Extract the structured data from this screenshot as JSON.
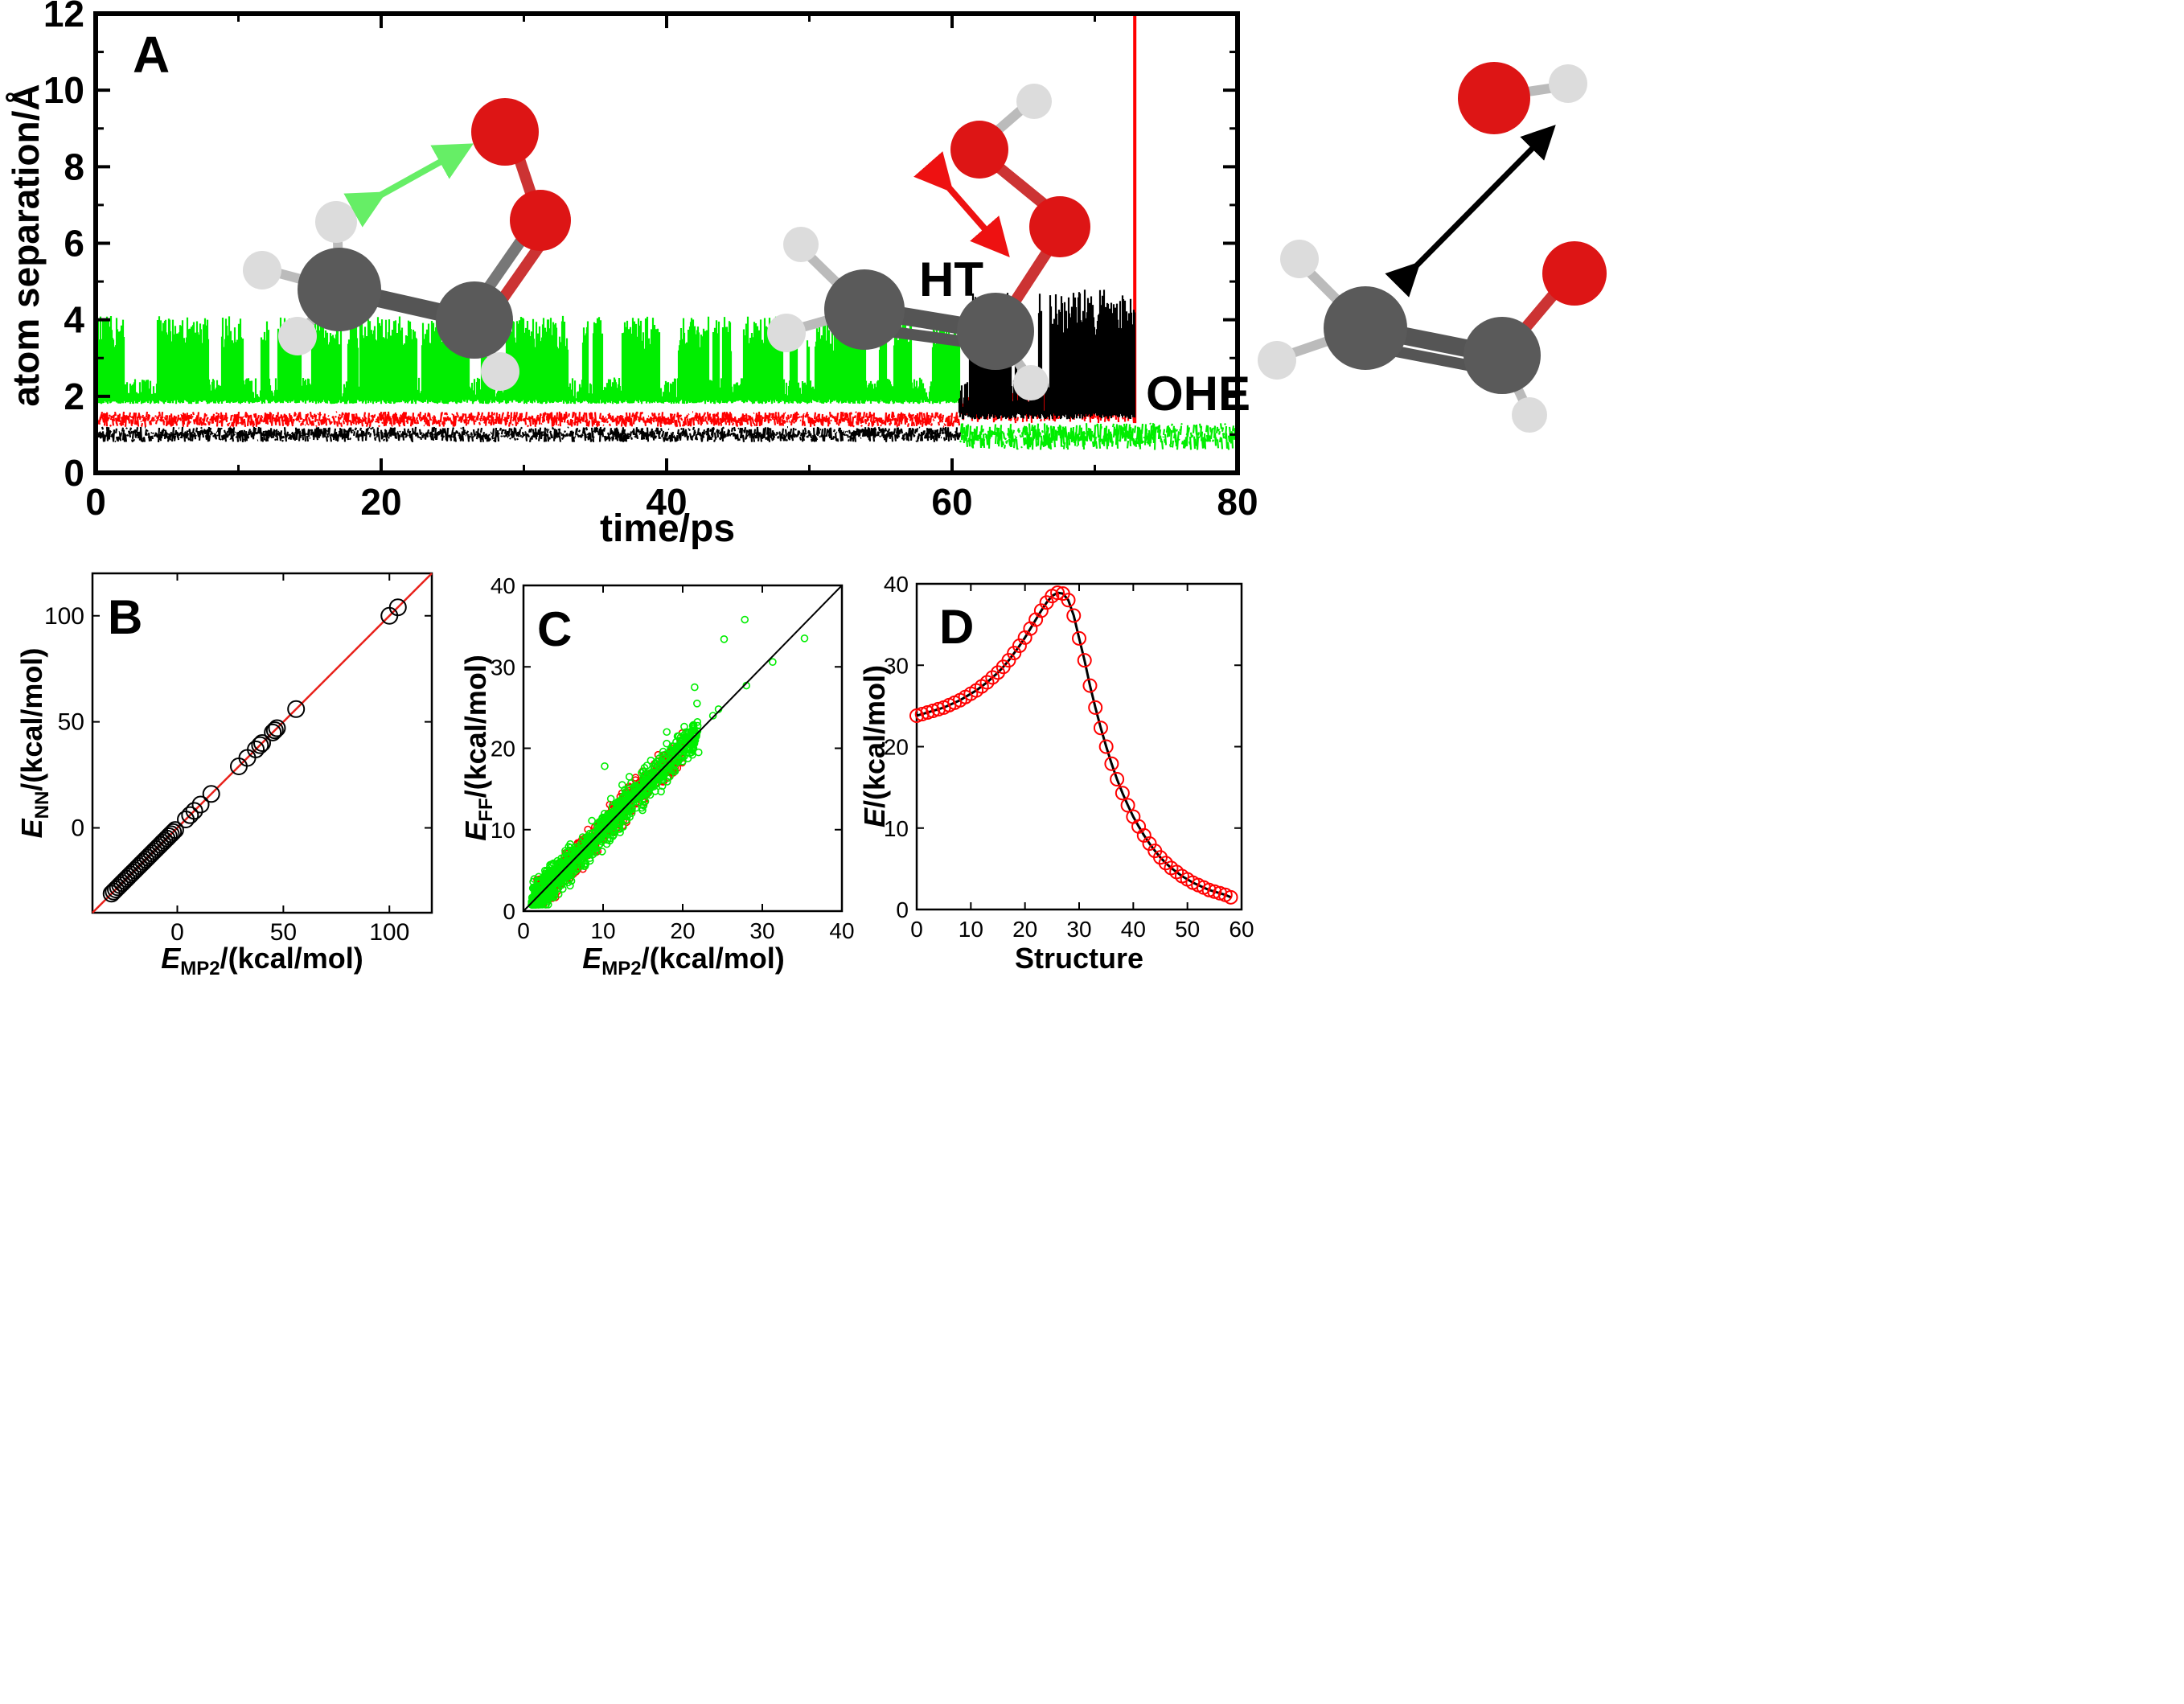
{
  "colors": {
    "green": "#00ee00",
    "red": "#ff0000",
    "black": "#000000",
    "fit_line": "#000000",
    "diag_b": "#e8201a"
  },
  "chart_data": [
    {
      "panel": "A",
      "type": "line",
      "xlabel": "time/ps",
      "ylabel": "atom separation/Å",
      "xlim": [
        0,
        80
      ],
      "ylim": [
        0,
        12
      ],
      "xticks": [
        "0",
        "20",
        "40",
        "60",
        "80"
      ],
      "yticks": [
        "0",
        "2",
        "4",
        "6",
        "8",
        "10",
        "12"
      ],
      "annotations": [
        "HT",
        "OHE"
      ],
      "series": [
        {
          "color": "green",
          "segments": [
            {
              "x": [
                0,
                60.5
              ],
              "y_low": 1.8,
              "y_high": 4.1,
              "pattern": "switching"
            },
            {
              "x": [
                60.5,
                80
              ],
              "y_low": 0.6,
              "y_high": 1.3,
              "pattern": "noise"
            }
          ]
        },
        {
          "color": "red",
          "segments": [
            {
              "x": [
                0,
                60.5
              ],
              "y_low": 1.2,
              "y_high": 1.6,
              "pattern": "noise"
            },
            {
              "x": [
                60.5,
                72.8
              ],
              "y_low": 1.3,
              "y_high": 2.1,
              "pattern": "noise"
            },
            {
              "x": [
                72.8,
                72.9
              ],
              "y_low": 1.3,
              "y_high": 12,
              "pattern": "jump"
            }
          ]
        },
        {
          "color": "black",
          "segments": [
            {
              "x": [
                0,
                60.5
              ],
              "y_low": 0.8,
              "y_high": 1.2,
              "pattern": "noise"
            },
            {
              "x": [
                60.5,
                72.8
              ],
              "y_low": 1.4,
              "y_high": 4.8,
              "pattern": "switching"
            }
          ]
        }
      ],
      "grid": false
    },
    {
      "panel": "B",
      "type": "scatter",
      "xlabel_main": "E",
      "xlabel_sub": "MP2",
      "xlabel_tail": "/(kcal/mol)",
      "ylabel_main": "E",
      "ylabel_sub": "NN",
      "ylabel_tail": "/(kcal/mol)",
      "xlim": [
        -40,
        120
      ],
      "ylim": [
        -40,
        120
      ],
      "xticks": [
        "0",
        "50",
        "100"
      ],
      "yticks": [
        "0",
        "50",
        "100"
      ],
      "points_x": [
        -31,
        -30,
        -29,
        -28,
        -27,
        -26,
        -25,
        -24,
        -23,
        -22,
        -21,
        -20,
        -19,
        -18,
        -17,
        -16,
        -15,
        -14,
        -13,
        -12,
        -11,
        -10,
        -9,
        -8,
        -7,
        -6,
        -5,
        -4,
        -3,
        -2,
        -1,
        4,
        6,
        8,
        11,
        16,
        29,
        33,
        37,
        39,
        40,
        45,
        46,
        47,
        56,
        100,
        104
      ],
      "points_y": [
        -31,
        -30,
        -29,
        -28,
        -27,
        -26,
        -25,
        -24,
        -23,
        -22,
        -21,
        -20,
        -19,
        -18,
        -17,
        -16,
        -15,
        -14,
        -13,
        -12,
        -11,
        -10,
        -9,
        -8,
        -7,
        -6,
        -5,
        -4,
        -3,
        -2,
        -1,
        4,
        6,
        8,
        11,
        16,
        29,
        33,
        37,
        39,
        40,
        45,
        46,
        47,
        56,
        100,
        104
      ],
      "reference_line": "y=x",
      "grid": false
    },
    {
      "panel": "C",
      "type": "scatter",
      "xlabel_main": "E",
      "xlabel_sub": "MP2",
      "xlabel_tail": "/(kcal/mol)",
      "ylabel_main": "E",
      "ylabel_sub": "FF",
      "ylabel_tail": "/(kcal/mol)",
      "xlim": [
        0,
        40
      ],
      "ylim": [
        0,
        40
      ],
      "xticks": [
        "0",
        "10",
        "20",
        "30",
        "40"
      ],
      "yticks": [
        "0",
        "10",
        "20",
        "30",
        "40"
      ],
      "series": [
        {
          "color": "red",
          "count": 500,
          "x_range": [
            1.5,
            20
          ],
          "spread": 1.3
        },
        {
          "color": "green",
          "count": 900,
          "x_range": [
            1,
            22
          ],
          "spread": 1.5,
          "outliers_x": [
            10.2,
            12.4,
            13.3,
            18,
            21.5,
            21.8,
            22,
            23.8,
            24.5,
            25.2,
            27.8,
            28,
            31.3,
            35.3,
            19.5,
            20.8,
            16,
            15.2
          ],
          "outliers_y": [
            17.8,
            15.5,
            16.5,
            22,
            27.5,
            25.5,
            19.5,
            24,
            24.8,
            33.4,
            35.8,
            27.7,
            30.6,
            33.5,
            21.5,
            20.5,
            18.5,
            17.6
          ]
        }
      ],
      "reference_line": "y=x",
      "grid": false
    },
    {
      "panel": "D",
      "type": "scatter",
      "xlabel": "Structure",
      "ylabel_main": "E",
      "ylabel_tail": "/(kcal/mol)",
      "xlim": [
        0,
        60
      ],
      "ylim": [
        0,
        40
      ],
      "xticks": [
        "0",
        "10",
        "20",
        "30",
        "40",
        "50",
        "60"
      ],
      "yticks": [
        "0",
        "10",
        "20",
        "30",
        "40"
      ],
      "x": [
        0,
        1,
        2,
        3,
        4,
        5,
        6,
        7,
        8,
        9,
        10,
        11,
        12,
        13,
        14,
        15,
        16,
        17,
        18,
        19,
        20,
        21,
        22,
        23,
        24,
        25,
        26,
        27,
        28,
        29,
        30,
        31,
        32,
        33,
        34,
        35,
        36,
        37,
        38,
        39,
        40,
        41,
        42,
        43,
        44,
        45,
        46,
        47,
        48,
        49,
        50,
        51,
        52,
        53,
        54,
        55,
        56,
        57,
        58
      ],
      "y": [
        23.8,
        24.0,
        24.2,
        24.4,
        24.6,
        24.8,
        25.1,
        25.4,
        25.7,
        26.1,
        26.5,
        26.9,
        27.4,
        27.9,
        28.5,
        29.1,
        29.8,
        30.6,
        31.5,
        32.4,
        33.4,
        34.5,
        35.6,
        36.7,
        37.7,
        38.5,
        38.9,
        38.8,
        38.0,
        36.1,
        33.3,
        30.6,
        27.5,
        24.8,
        22.3,
        20.0,
        17.9,
        16.0,
        14.3,
        12.8,
        11.4,
        10.2,
        9.1,
        8.1,
        7.2,
        6.4,
        5.7,
        5.1,
        4.6,
        4.1,
        3.7,
        3.3,
        3.0,
        2.7,
        2.4,
        2.2,
        2.0,
        1.8,
        1.5
      ],
      "fit_line": true,
      "grid": false
    }
  ]
}
